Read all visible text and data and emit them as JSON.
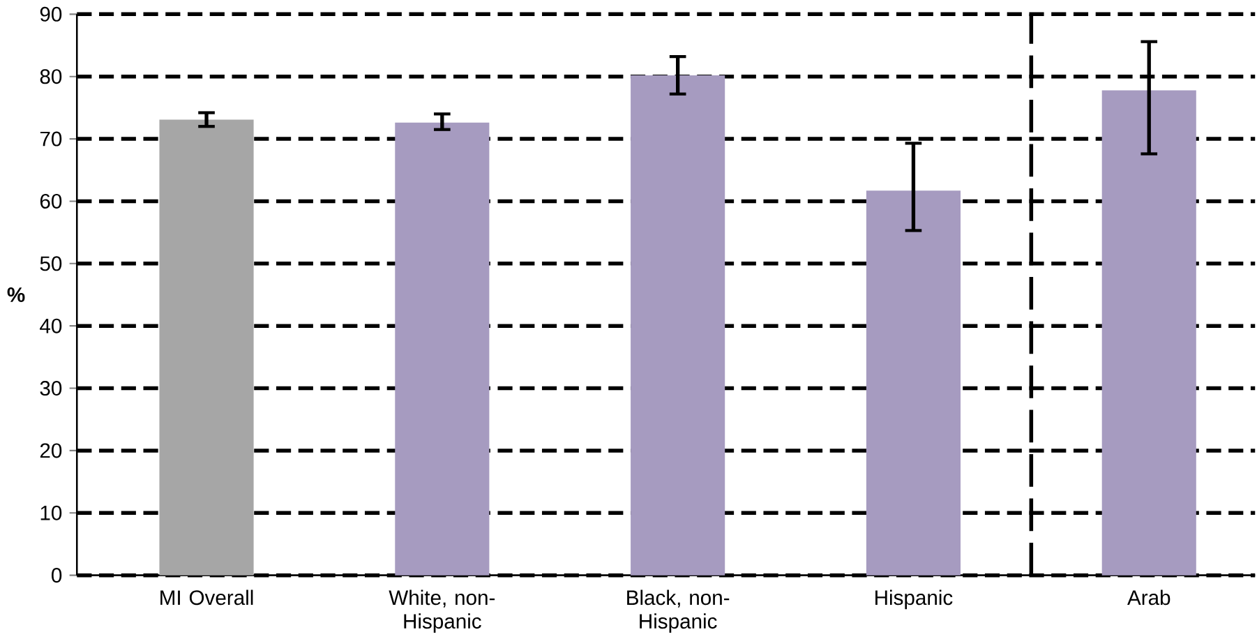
{
  "chart_data": {
    "type": "bar",
    "ylabel": "%",
    "categories": [
      "MI Overall",
      "White, non-Hispanic",
      "Black, non-Hispanic",
      "Hispanic",
      "Arab"
    ],
    "values": [
      73.1,
      72.6,
      80.2,
      61.7,
      77.8
    ],
    "colors": [
      "#a6a6a6",
      "#a69bc0",
      "#a69bc0",
      "#a69bc0",
      "#a69bc0"
    ],
    "errors": [
      [
        72.0,
        74.2
      ],
      [
        71.5,
        74.0
      ],
      [
        77.2,
        83.2
      ],
      [
        55.3,
        69.3
      ],
      [
        67.6,
        85.6
      ]
    ],
    "ylim": [
      0,
      90
    ],
    "yticks": [
      0,
      10,
      20,
      30,
      40,
      50,
      60,
      70,
      80,
      90
    ],
    "grid": "y"
  }
}
